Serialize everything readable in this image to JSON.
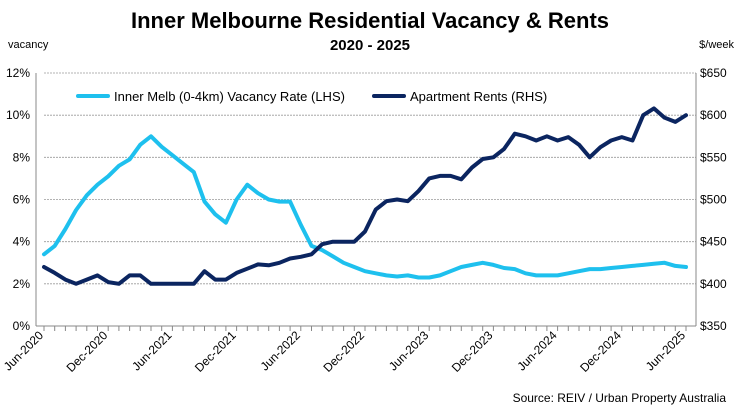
{
  "chart_data": {
    "type": "line",
    "title": "Inner Melbourne Residential Vacancy & Rents",
    "subtitle": "2020 - 2025",
    "ylabel_left": "vacancy",
    "ylabel_right": "$/week",
    "source": "Source: REIV / Urban Property Australia",
    "x_tick_labels": [
      "Jun-2020",
      "Dec-2020",
      "Jun-2021",
      "Dec-2021",
      "Jun-2022",
      "Dec-2022",
      "Jun-2023",
      "Dec-2023",
      "Jun-2024",
      "Dec-2024",
      "Jun-2025"
    ],
    "x_months": 61,
    "y_left": {
      "lim": [
        0,
        12
      ],
      "ticks": [
        "0%",
        "2%",
        "4%",
        "6%",
        "8%",
        "10%",
        "12%"
      ]
    },
    "y_right": {
      "lim": [
        350,
        650
      ],
      "ticks": [
        "$350",
        "$400",
        "$450",
        "$500",
        "$550",
        "$600",
        "$650"
      ]
    },
    "grid": true,
    "legend_placement": "top",
    "series": [
      {
        "name": "Inner Melb (0-4km) Vacancy Rate (LHS)",
        "axis": "left",
        "color": "#1EC0EE",
        "values": [
          3.4,
          3.8,
          4.6,
          5.5,
          6.2,
          6.7,
          7.1,
          7.6,
          7.9,
          8.6,
          9.0,
          8.5,
          8.1,
          7.7,
          7.3,
          5.9,
          5.3,
          4.9,
          6.0,
          6.7,
          6.3,
          6.0,
          5.9,
          5.9,
          4.8,
          3.8,
          3.6,
          3.3,
          3.0,
          2.8,
          2.6,
          2.5,
          2.4,
          2.35,
          2.4,
          2.3,
          2.3,
          2.4,
          2.6,
          2.8,
          2.9,
          3.0,
          2.9,
          2.75,
          2.7,
          2.5,
          2.4,
          2.4,
          2.4,
          2.5,
          2.6,
          2.7,
          2.7,
          2.75,
          2.8,
          2.85,
          2.9,
          2.95,
          3.0,
          2.85,
          2.8
        ]
      },
      {
        "name": "Apartment Rents (RHS)",
        "axis": "right",
        "color": "#0B2560",
        "values": [
          420,
          413,
          405,
          400,
          405,
          410,
          402,
          400,
          410,
          410,
          400,
          400,
          400,
          400,
          400,
          415,
          405,
          405,
          413,
          418,
          423,
          422,
          425,
          430,
          432,
          435,
          447,
          450,
          450,
          450,
          462,
          488,
          498,
          500,
          498,
          510,
          525,
          528,
          528,
          524,
          538,
          548,
          550,
          560,
          578,
          575,
          570,
          575,
          570,
          574,
          565,
          550,
          562,
          570,
          574,
          570,
          600,
          608,
          597,
          592,
          600
        ]
      }
    ]
  }
}
